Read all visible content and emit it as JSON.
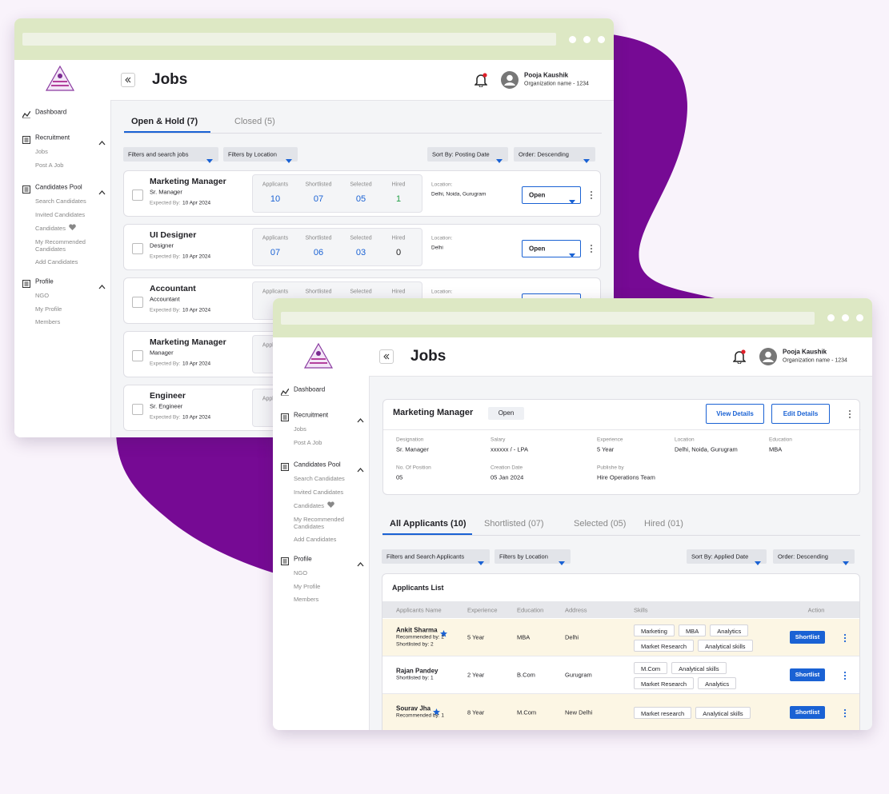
{
  "shared": {
    "header": {
      "title": "Jobs",
      "user_name": "Pooja Kaushik",
      "organization": "Organization name - 1234"
    },
    "sidebar": {
      "dashboard": "Dashboard",
      "sections": [
        {
          "title": "Recruitment",
          "items": [
            "Jobs",
            "Post A Job"
          ]
        },
        {
          "title": "Candidates Pool",
          "items": [
            "Search Candidates",
            "Invited Candidates",
            "Candidates",
            "My Recommended Candidates",
            "Add Candidates"
          ]
        },
        {
          "title": "Profile",
          "items": [
            "NGO",
            "My Profile",
            "Members"
          ]
        }
      ]
    }
  },
  "jobs_window": {
    "tabs": [
      "Open & Hold (7)",
      "Closed (5)"
    ],
    "filters": [
      "Filters and search jobs",
      "Filters by Location",
      "Sort By: Posting Date",
      "Order: Descending"
    ],
    "stat_labels": [
      "Applicants",
      "Shortlisted",
      "Selected",
      "Hired"
    ],
    "expected_label": "Expected By:",
    "location_label": "Location:",
    "jobs": [
      {
        "title": "Marketing Manager",
        "role": "Sr. Manager",
        "expected": "10 Apr 2024",
        "stats": [
          "10",
          "07",
          "05",
          "1"
        ],
        "hired_color": "#23a047",
        "location": "Delhi, Noida, Gurugram",
        "status": "Open"
      },
      {
        "title": "UI Designer",
        "role": "Designer",
        "expected": "10 Apr 2024",
        "stats": [
          "07",
          "06",
          "03",
          "0"
        ],
        "hired_color": "#222222",
        "location": "Delhi",
        "status": "Open"
      },
      {
        "title": "Accountant",
        "role": "Accountant",
        "expected": "10 Apr 2024"
      },
      {
        "title": "Marketing Manager",
        "role": "Manager",
        "expected": "10 Apr 2024"
      },
      {
        "title": "Engineer",
        "role": "Sr. Engineer",
        "expected": "10 Apr 2024"
      }
    ]
  },
  "details_window": {
    "job": {
      "title": "Marketing Manager",
      "status": "Open",
      "buttons": [
        "View Details",
        "Edit Details"
      ],
      "fields": [
        {
          "label": "Designation",
          "value": "Sr. Manager"
        },
        {
          "label": "Salary",
          "value": "xxxxxx / - LPA"
        },
        {
          "label": "Experience",
          "value": "5 Year"
        },
        {
          "label": "Location",
          "value": "Delhi, Noida, Gurugram"
        },
        {
          "label": "Education",
          "value": "MBA"
        },
        {
          "label": "No. Of Position",
          "value": "05"
        },
        {
          "label": "Creation Date",
          "value": "05 Jan 2024"
        },
        {
          "label": "Publishe by",
          "value": "Hire Operations Team"
        }
      ]
    },
    "tabs": [
      "All Applicants (10)",
      "Shortlisted (07)",
      "Selected (05)",
      "Hired (01)"
    ],
    "filters": [
      "Filters and Search Applicants",
      "Filters by Location",
      "Sort By: Applied Date",
      "Order: Descending"
    ],
    "list_title": "Applicants List",
    "columns": [
      "Applicants Name",
      "Experience",
      "Education",
      "Address",
      "Skills",
      "Action"
    ],
    "action": "Shortlist",
    "applicants": [
      {
        "name": "Ankit Sharma",
        "starred": true,
        "notes": [
          "Recommended by: 2",
          "Shortlisted by: 2"
        ],
        "experience": "5 Year",
        "education": "MBA",
        "address": "Delhi",
        "skills": [
          "Marketing",
          "MBA",
          "Analytics",
          "Market Research",
          "Analytical skills"
        ],
        "highlight": true
      },
      {
        "name": "Rajan Pandey",
        "starred": false,
        "notes": [
          "Shortlisted by: 1"
        ],
        "experience": "2 Year",
        "education": "B.Com",
        "address": "Gurugram",
        "skills": [
          "M.Com",
          "Analytical skills",
          "Market Research",
          "Analytics"
        ],
        "highlight": false
      },
      {
        "name": "Sourav Jha",
        "starred": true,
        "notes": [
          "Recommended by: 1"
        ],
        "experience": "8 Year",
        "education": "M.Com",
        "address": "New Delhi",
        "skills": [
          "Market research",
          "Analytical skills"
        ],
        "highlight": true
      }
    ]
  }
}
